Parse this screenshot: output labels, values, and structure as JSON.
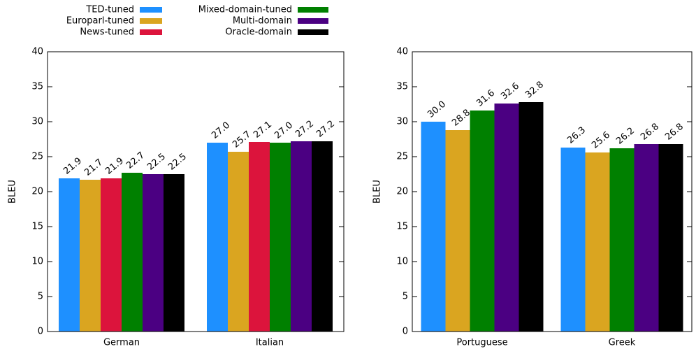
{
  "chart_data": [
    {
      "type": "bar",
      "y_label": "BLEU",
      "categories": [
        "German",
        "Italian"
      ],
      "ylim": [
        0,
        40
      ],
      "yticks": [
        0,
        5,
        10,
        15,
        20,
        25,
        30,
        35,
        40
      ],
      "series": [
        {
          "name": "TED-tuned",
          "color": "#1e90ff",
          "values": [
            21.9,
            27.0
          ],
          "value_labels": [
            "21.9",
            "27.0"
          ]
        },
        {
          "name": "Europarl-tuned",
          "color": "#daa520",
          "values": [
            21.7,
            25.7
          ],
          "value_labels": [
            "21.7",
            "25.7"
          ]
        },
        {
          "name": "News-tuned",
          "color": "#dc143c",
          "values": [
            21.9,
            27.1
          ],
          "value_labels": [
            "21.9",
            "27.1"
          ]
        },
        {
          "name": "Mixed-domain-tuned",
          "color": "#008000",
          "values": [
            22.7,
            27.0
          ],
          "value_labels": [
            "22.7",
            "27.0"
          ]
        },
        {
          "name": "Multi-domain",
          "color": "#4b0082",
          "values": [
            22.5,
            27.2
          ],
          "value_labels": [
            "22.5",
            "27.2"
          ]
        },
        {
          "name": "Oracle-domain",
          "color": "#000000",
          "values": [
            22.5,
            27.2
          ],
          "value_labels": [
            "22.5",
            "27.2"
          ]
        }
      ]
    },
    {
      "type": "bar",
      "y_label": "BLEU",
      "categories": [
        "Portuguese",
        "Greek"
      ],
      "ylim": [
        0,
        40
      ],
      "yticks": [
        0,
        5,
        10,
        15,
        20,
        25,
        30,
        35,
        40
      ],
      "series": [
        {
          "color": "#1e90ff",
          "values": [
            30.0,
            26.3
          ],
          "value_labels": [
            "30.0",
            "26.3"
          ]
        },
        {
          "color": "#daa520",
          "values": [
            28.8,
            25.6
          ],
          "value_labels": [
            "28.8",
            "25.6"
          ]
        },
        {
          "color": "#008000",
          "values": [
            31.6,
            26.2
          ],
          "value_labels": [
            "31.6",
            "26.2"
          ]
        },
        {
          "color": "#4b0082",
          "values": [
            32.6,
            26.8
          ],
          "value_labels": [
            "32.6",
            "26.8"
          ]
        },
        {
          "color": "#000000",
          "values": [
            32.8,
            26.8
          ],
          "value_labels": [
            "32.8",
            "26.8"
          ]
        }
      ]
    }
  ]
}
